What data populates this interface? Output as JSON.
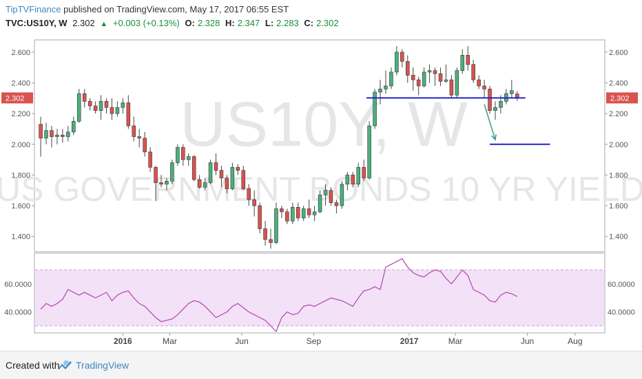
{
  "header": {
    "author": "TipTVFinance",
    "published": "published on TradingView.com, May 17, 2017 06:55 EST",
    "symbol": "TVC:US10Y, W",
    "last": "2.302",
    "change": "+0.003 (+0.13%)",
    "open_label": "O:",
    "open": "2.328",
    "high_label": "H:",
    "high": "2.347",
    "low_label": "L:",
    "low": "2.283",
    "close_label": "C:",
    "close": "2.302"
  },
  "watermark": {
    "symbol": "US10Y, W",
    "description": "US GOVERNMENT BONDS 10 YR YIELD"
  },
  "footer": {
    "created": "Created with",
    "brand": "TradingView"
  },
  "colors": {
    "up": "#4caf7d",
    "down": "#d9534f",
    "rsi": "#b044b0",
    "rsi_band": "#f3e1f7",
    "annotation": "#2222cc",
    "arrow": "#3a9a8f",
    "price_label": "#d9534f"
  },
  "chart_data": [
    {
      "type": "candlestick",
      "title": "TVC:US10Y, W",
      "ylim": [
        1.3,
        2.68
      ],
      "y_ticks": [
        "2.600",
        "2.400",
        "2.200",
        "2.000",
        "1.800",
        "1.600",
        "1.400"
      ],
      "y_tick_values": [
        2.6,
        2.4,
        2.2,
        2.0,
        1.8,
        1.6,
        1.4
      ],
      "current_price_label": "2.302",
      "current_price": 2.302,
      "x_ticks": [
        "2016",
        "Mar",
        "Jun",
        "Sep",
        "2017",
        "Mar",
        "Jun",
        "Aug"
      ],
      "x_tick_dates": [
        "2016-01-01",
        "2016-03-01",
        "2016-06-01",
        "2016-09-01",
        "2017-01-01",
        "2017-03-01",
        "2017-06-01",
        "2017-08-01"
      ],
      "candles": [
        {
          "date": "2015-09-18",
          "o": 2.13,
          "h": 2.18,
          "l": 1.92,
          "c": 2.04
        },
        {
          "date": "2015-09-25",
          "o": 2.04,
          "h": 2.14,
          "l": 2.0,
          "c": 2.09
        },
        {
          "date": "2015-10-02",
          "o": 2.09,
          "h": 2.12,
          "l": 1.98,
          "c": 2.05
        },
        {
          "date": "2015-10-09",
          "o": 2.05,
          "h": 2.1,
          "l": 2.0,
          "c": 2.06
        },
        {
          "date": "2015-10-16",
          "o": 2.06,
          "h": 2.1,
          "l": 2.01,
          "c": 2.05
        },
        {
          "date": "2015-10-23",
          "o": 2.05,
          "h": 2.12,
          "l": 2.02,
          "c": 2.08
        },
        {
          "date": "2015-10-30",
          "o": 2.08,
          "h": 2.18,
          "l": 2.06,
          "c": 2.15
        },
        {
          "date": "2015-11-06",
          "o": 2.15,
          "h": 2.36,
          "l": 2.14,
          "c": 2.33
        },
        {
          "date": "2015-11-13",
          "o": 2.33,
          "h": 2.36,
          "l": 2.24,
          "c": 2.28
        },
        {
          "date": "2015-11-20",
          "o": 2.28,
          "h": 2.3,
          "l": 2.22,
          "c": 2.25
        },
        {
          "date": "2015-11-27",
          "o": 2.25,
          "h": 2.28,
          "l": 2.2,
          "c": 2.22
        },
        {
          "date": "2015-12-04",
          "o": 2.22,
          "h": 2.32,
          "l": 2.16,
          "c": 2.28
        },
        {
          "date": "2015-12-11",
          "o": 2.28,
          "h": 2.3,
          "l": 2.2,
          "c": 2.24
        },
        {
          "date": "2015-12-18",
          "o": 2.24,
          "h": 2.3,
          "l": 2.16,
          "c": 2.2
        },
        {
          "date": "2015-12-25",
          "o": 2.2,
          "h": 2.28,
          "l": 2.18,
          "c": 2.24
        },
        {
          "date": "2016-01-01",
          "o": 2.24,
          "h": 2.3,
          "l": 2.2,
          "c": 2.27
        },
        {
          "date": "2016-01-08",
          "o": 2.27,
          "h": 2.32,
          "l": 2.1,
          "c": 2.12
        },
        {
          "date": "2016-01-15",
          "o": 2.12,
          "h": 2.18,
          "l": 2.02,
          "c": 2.05
        },
        {
          "date": "2016-01-22",
          "o": 2.05,
          "h": 2.1,
          "l": 1.98,
          "c": 2.04
        },
        {
          "date": "2016-01-29",
          "o": 2.04,
          "h": 2.08,
          "l": 1.92,
          "c": 1.95
        },
        {
          "date": "2016-02-05",
          "o": 1.95,
          "h": 1.98,
          "l": 1.82,
          "c": 1.85
        },
        {
          "date": "2016-02-12",
          "o": 1.85,
          "h": 1.86,
          "l": 1.63,
          "c": 1.75
        },
        {
          "date": "2016-02-19",
          "o": 1.75,
          "h": 1.8,
          "l": 1.72,
          "c": 1.74
        },
        {
          "date": "2016-02-26",
          "o": 1.74,
          "h": 1.78,
          "l": 1.7,
          "c": 1.76
        },
        {
          "date": "2016-03-04",
          "o": 1.76,
          "h": 1.9,
          "l": 1.74,
          "c": 1.88
        },
        {
          "date": "2016-03-11",
          "o": 1.88,
          "h": 2.0,
          "l": 1.86,
          "c": 1.98
        },
        {
          "date": "2016-03-18",
          "o": 1.98,
          "h": 2.0,
          "l": 1.86,
          "c": 1.9
        },
        {
          "date": "2016-03-25",
          "o": 1.9,
          "h": 1.94,
          "l": 1.86,
          "c": 1.92
        },
        {
          "date": "2016-04-01",
          "o": 1.92,
          "h": 1.93,
          "l": 1.76,
          "c": 1.77
        },
        {
          "date": "2016-04-08",
          "o": 1.77,
          "h": 1.8,
          "l": 1.71,
          "c": 1.72
        },
        {
          "date": "2016-04-15",
          "o": 1.72,
          "h": 1.78,
          "l": 1.7,
          "c": 1.75
        },
        {
          "date": "2016-04-22",
          "o": 1.75,
          "h": 1.9,
          "l": 1.74,
          "c": 1.88
        },
        {
          "date": "2016-04-29",
          "o": 1.88,
          "h": 1.94,
          "l": 1.8,
          "c": 1.83
        },
        {
          "date": "2016-05-06",
          "o": 1.83,
          "h": 1.86,
          "l": 1.72,
          "c": 1.78
        },
        {
          "date": "2016-05-13",
          "o": 1.78,
          "h": 1.8,
          "l": 1.68,
          "c": 1.71
        },
        {
          "date": "2016-05-20",
          "o": 1.71,
          "h": 1.88,
          "l": 1.7,
          "c": 1.85
        },
        {
          "date": "2016-05-27",
          "o": 1.85,
          "h": 1.87,
          "l": 1.8,
          "c": 1.83
        },
        {
          "date": "2016-06-03",
          "o": 1.83,
          "h": 1.86,
          "l": 1.7,
          "c": 1.71
        },
        {
          "date": "2016-06-10",
          "o": 1.71,
          "h": 1.74,
          "l": 1.6,
          "c": 1.64
        },
        {
          "date": "2016-06-17",
          "o": 1.64,
          "h": 1.7,
          "l": 1.53,
          "c": 1.6
        },
        {
          "date": "2016-06-24",
          "o": 1.6,
          "h": 1.62,
          "l": 1.42,
          "c": 1.45
        },
        {
          "date": "2016-07-01",
          "o": 1.45,
          "h": 1.5,
          "l": 1.34,
          "c": 1.38
        },
        {
          "date": "2016-07-08",
          "o": 1.38,
          "h": 1.45,
          "l": 1.32,
          "c": 1.36
        },
        {
          "date": "2016-07-15",
          "o": 1.36,
          "h": 1.62,
          "l": 1.35,
          "c": 1.58
        },
        {
          "date": "2016-07-22",
          "o": 1.58,
          "h": 1.6,
          "l": 1.52,
          "c": 1.56
        },
        {
          "date": "2016-07-29",
          "o": 1.56,
          "h": 1.58,
          "l": 1.48,
          "c": 1.5
        },
        {
          "date": "2016-08-05",
          "o": 1.5,
          "h": 1.62,
          "l": 1.48,
          "c": 1.59
        },
        {
          "date": "2016-08-12",
          "o": 1.59,
          "h": 1.62,
          "l": 1.5,
          "c": 1.52
        },
        {
          "date": "2016-08-19",
          "o": 1.52,
          "h": 1.6,
          "l": 1.5,
          "c": 1.58
        },
        {
          "date": "2016-08-26",
          "o": 1.58,
          "h": 1.64,
          "l": 1.52,
          "c": 1.54
        },
        {
          "date": "2016-09-02",
          "o": 1.54,
          "h": 1.6,
          "l": 1.5,
          "c": 1.56
        },
        {
          "date": "2016-09-09",
          "o": 1.56,
          "h": 1.7,
          "l": 1.55,
          "c": 1.67
        },
        {
          "date": "2016-09-16",
          "o": 1.67,
          "h": 1.74,
          "l": 1.6,
          "c": 1.7
        },
        {
          "date": "2016-09-23",
          "o": 1.7,
          "h": 1.72,
          "l": 1.6,
          "c": 1.62
        },
        {
          "date": "2016-09-30",
          "o": 1.62,
          "h": 1.64,
          "l": 1.55,
          "c": 1.6
        },
        {
          "date": "2016-10-07",
          "o": 1.6,
          "h": 1.76,
          "l": 1.58,
          "c": 1.74
        },
        {
          "date": "2016-10-14",
          "o": 1.74,
          "h": 1.82,
          "l": 1.7,
          "c": 1.8
        },
        {
          "date": "2016-10-21",
          "o": 1.8,
          "h": 1.82,
          "l": 1.72,
          "c": 1.74
        },
        {
          "date": "2016-10-28",
          "o": 1.74,
          "h": 1.88,
          "l": 1.72,
          "c": 1.85
        },
        {
          "date": "2016-11-04",
          "o": 1.85,
          "h": 1.9,
          "l": 1.76,
          "c": 1.78
        },
        {
          "date": "2016-11-11",
          "o": 1.78,
          "h": 2.15,
          "l": 1.77,
          "c": 2.12
        },
        {
          "date": "2016-11-18",
          "o": 2.12,
          "h": 2.36,
          "l": 2.1,
          "c": 2.34
        },
        {
          "date": "2016-11-25",
          "o": 2.34,
          "h": 2.42,
          "l": 2.26,
          "c": 2.36
        },
        {
          "date": "2016-12-02",
          "o": 2.36,
          "h": 2.48,
          "l": 2.33,
          "c": 2.38
        },
        {
          "date": "2016-12-09",
          "o": 2.38,
          "h": 2.5,
          "l": 2.36,
          "c": 2.47
        },
        {
          "date": "2016-12-16",
          "o": 2.47,
          "h": 2.64,
          "l": 2.45,
          "c": 2.6
        },
        {
          "date": "2016-12-23",
          "o": 2.6,
          "h": 2.62,
          "l": 2.5,
          "c": 2.54
        },
        {
          "date": "2016-12-30",
          "o": 2.54,
          "h": 2.58,
          "l": 2.4,
          "c": 2.45
        },
        {
          "date": "2017-01-06",
          "o": 2.45,
          "h": 2.5,
          "l": 2.35,
          "c": 2.42
        },
        {
          "date": "2017-01-13",
          "o": 2.42,
          "h": 2.44,
          "l": 2.32,
          "c": 2.38
        },
        {
          "date": "2017-01-20",
          "o": 2.38,
          "h": 2.5,
          "l": 2.37,
          "c": 2.47
        },
        {
          "date": "2017-01-27",
          "o": 2.47,
          "h": 2.52,
          "l": 2.4,
          "c": 2.48
        },
        {
          "date": "2017-02-03",
          "o": 2.48,
          "h": 2.5,
          "l": 2.38,
          "c": 2.46
        },
        {
          "date": "2017-02-10",
          "o": 2.46,
          "h": 2.5,
          "l": 2.38,
          "c": 2.41
        },
        {
          "date": "2017-02-17",
          "o": 2.41,
          "h": 2.52,
          "l": 2.4,
          "c": 2.42
        },
        {
          "date": "2017-02-24",
          "o": 2.42,
          "h": 2.45,
          "l": 2.3,
          "c": 2.32
        },
        {
          "date": "2017-03-03",
          "o": 2.32,
          "h": 2.5,
          "l": 2.3,
          "c": 2.48
        },
        {
          "date": "2017-03-10",
          "o": 2.48,
          "h": 2.62,
          "l": 2.46,
          "c": 2.58
        },
        {
          "date": "2017-03-17",
          "o": 2.58,
          "h": 2.64,
          "l": 2.48,
          "c": 2.52
        },
        {
          "date": "2017-03-24",
          "o": 2.52,
          "h": 2.55,
          "l": 2.4,
          "c": 2.42
        },
        {
          "date": "2017-03-31",
          "o": 2.42,
          "h": 2.45,
          "l": 2.36,
          "c": 2.38
        },
        {
          "date": "2017-04-07",
          "o": 2.38,
          "h": 2.42,
          "l": 2.3,
          "c": 2.36
        },
        {
          "date": "2017-04-14",
          "o": 2.36,
          "h": 2.38,
          "l": 2.2,
          "c": 2.22
        },
        {
          "date": "2017-04-21",
          "o": 2.22,
          "h": 2.28,
          "l": 2.16,
          "c": 2.24
        },
        {
          "date": "2017-04-28",
          "o": 2.24,
          "h": 2.32,
          "l": 2.2,
          "c": 2.28
        },
        {
          "date": "2017-05-05",
          "o": 2.28,
          "h": 2.36,
          "l": 2.26,
          "c": 2.33
        },
        {
          "date": "2017-05-12",
          "o": 2.33,
          "h": 2.42,
          "l": 2.3,
          "c": 2.35
        },
        {
          "date": "2017-05-19",
          "o": 2.328,
          "h": 2.347,
          "l": 2.283,
          "c": 2.302
        }
      ],
      "support_line": {
        "y": 2.302,
        "x_start": "2016-11-11",
        "x_end": "2017-05-26"
      },
      "target_line": {
        "y": 2.0,
        "x_start": "2017-04-14",
        "x_end": "2017-06-30"
      },
      "arrow": {
        "from": {
          "date": "2017-04-07",
          "y": 2.26
        },
        "to": {
          "date": "2017-04-21",
          "y": 2.03
        }
      }
    },
    {
      "type": "line",
      "title": "RSI",
      "ylim": [
        25,
        82
      ],
      "y_ticks": [
        "60.0000",
        "40.0000"
      ],
      "y_tick_values": [
        60,
        40
      ],
      "band": [
        30,
        70
      ],
      "values": [
        42,
        46,
        44,
        46,
        49,
        56,
        54,
        52,
        54,
        52,
        50,
        54,
        48,
        52,
        54,
        55,
        50,
        46,
        44,
        40,
        36,
        33,
        34,
        35,
        38,
        42,
        46,
        48,
        47,
        44,
        40,
        36,
        40,
        44,
        46,
        43,
        40,
        38,
        36,
        34,
        30,
        26,
        36,
        40,
        38,
        39,
        44,
        45,
        44,
        46,
        48,
        50,
        48,
        46,
        44,
        50,
        55,
        56,
        58,
        56,
        72,
        74,
        76,
        78,
        72,
        68,
        66,
        65,
        68,
        70,
        69,
        64,
        60,
        70,
        66,
        56,
        54,
        52,
        48,
        47,
        52,
        54,
        53,
        51
      ]
    }
  ]
}
